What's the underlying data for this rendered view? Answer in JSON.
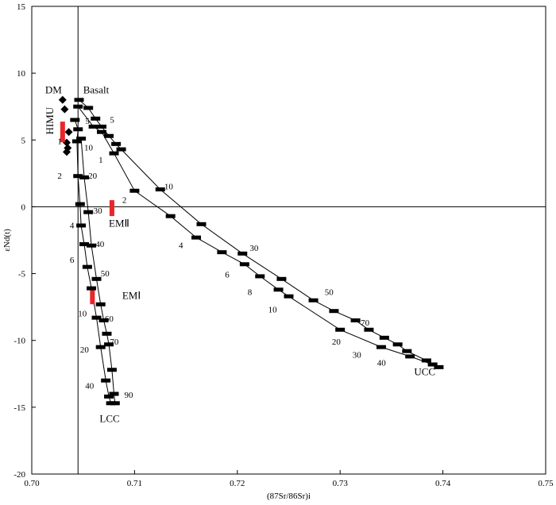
{
  "chart_data": {
    "type": "scatter",
    "title": "",
    "xlabel": "(87Sr/86Sr)i",
    "ylabel": "εNd(t)",
    "xlim": [
      0.7,
      0.75
    ],
    "ylim": [
      -20,
      15
    ],
    "xticks": [
      "0.70",
      "0.71",
      "0.72",
      "0.73",
      "0.74",
      "0.75"
    ],
    "yticks": [
      "15",
      "10",
      "5",
      "0",
      "-5",
      "-10",
      "-15",
      "-20"
    ],
    "reference_lines": {
      "vertical_x": 0.7045,
      "horizontal_y": 0
    },
    "grid": false,
    "series": [
      {
        "name": "Basalt",
        "marker": "diamond",
        "points": [
          [
            0.703,
            8.0
          ],
          [
            0.7032,
            7.3
          ],
          [
            0.7036,
            5.6
          ],
          [
            0.7034,
            4.8
          ],
          [
            0.7035,
            4.4
          ],
          [
            0.7034,
            4.1
          ]
        ]
      },
      {
        "marker": "red-bar",
        "points": [
          [
            0.703,
            5.6
          ],
          [
            0.7078,
            -0.1
          ],
          [
            0.7059,
            -6.7
          ]
        ]
      },
      {
        "marker": "black-dash",
        "curve": "Basalt-UCC upper",
        "points": [
          [
            0.7046,
            8.0
          ],
          [
            0.7055,
            7.4
          ],
          [
            0.7062,
            6.6
          ],
          [
            0.7068,
            6.0
          ],
          [
            0.7075,
            5.3
          ],
          [
            0.7082,
            4.7
          ],
          [
            0.7087,
            4.3
          ],
          [
            0.7125,
            1.3
          ],
          [
            0.7165,
            -1.3
          ],
          [
            0.7205,
            -3.5
          ],
          [
            0.7243,
            -5.4
          ],
          [
            0.7274,
            -7.0
          ],
          [
            0.7294,
            -7.8
          ],
          [
            0.7315,
            -8.5
          ],
          [
            0.7328,
            -9.2
          ],
          [
            0.7343,
            -9.8
          ],
          [
            0.7356,
            -10.3
          ],
          [
            0.7365,
            -10.8
          ],
          [
            0.7384,
            -11.5
          ],
          [
            0.7396,
            -12.0
          ]
        ]
      },
      {
        "marker": "black-dash",
        "curve": "DM-UCC lower",
        "points": [
          [
            0.7045,
            7.5
          ],
          [
            0.706,
            6.0
          ],
          [
            0.7068,
            5.6
          ],
          [
            0.708,
            4.0
          ],
          [
            0.71,
            1.2
          ],
          [
            0.7135,
            -0.7
          ],
          [
            0.716,
            -2.3
          ],
          [
            0.7185,
            -3.4
          ],
          [
            0.7207,
            -4.3
          ],
          [
            0.7222,
            -5.2
          ],
          [
            0.724,
            -6.2
          ],
          [
            0.725,
            -6.7
          ],
          [
            0.73,
            -9.2
          ],
          [
            0.734,
            -10.5
          ],
          [
            0.7368,
            -11.2
          ],
          [
            0.739,
            -11.8
          ]
        ]
      },
      {
        "marker": "black-dash",
        "curve": "Basalt-LCC left",
        "points": [
          [
            0.7042,
            6.5
          ],
          [
            0.7045,
            5.8
          ],
          [
            0.7044,
            4.9
          ],
          [
            0.7045,
            2.3
          ],
          [
            0.7047,
            0.2
          ],
          [
            0.7048,
            -1.4
          ],
          [
            0.7051,
            -2.8
          ],
          [
            0.7054,
            -4.5
          ],
          [
            0.7058,
            -6.1
          ],
          [
            0.7063,
            -8.3
          ],
          [
            0.7067,
            -10.5
          ],
          [
            0.7072,
            -13.0
          ],
          [
            0.7075,
            -14.2
          ],
          [
            0.7077,
            -14.7
          ]
        ]
      },
      {
        "marker": "black-dash",
        "curve": "Basalt-LCC right",
        "points": [
          [
            0.7048,
            5.1
          ],
          [
            0.7051,
            2.2
          ],
          [
            0.7055,
            -0.4
          ],
          [
            0.7058,
            -2.9
          ],
          [
            0.7063,
            -5.4
          ],
          [
            0.7067,
            -7.3
          ],
          [
            0.707,
            -8.5
          ],
          [
            0.7073,
            -9.5
          ],
          [
            0.7075,
            -10.3
          ],
          [
            0.7078,
            -12.2
          ],
          [
            0.708,
            -14.0
          ],
          [
            0.7081,
            -14.7
          ]
        ]
      }
    ],
    "annotations": [
      {
        "text": "DM",
        "x": 0.7013,
        "y": 8.5,
        "size": "big"
      },
      {
        "text": "Basalt",
        "x": 0.705,
        "y": 8.5,
        "size": "big"
      },
      {
        "text": "HIMU",
        "x": 0.7021,
        "y": 5.4,
        "size": "big",
        "rotate": true
      },
      {
        "text": "EMⅡ",
        "x": 0.7075,
        "y": -1.5,
        "size": "big"
      },
      {
        "text": "EMⅠ",
        "x": 0.7088,
        "y": -6.9,
        "size": "big"
      },
      {
        "text": "LCC",
        "x": 0.7066,
        "y": -16.1,
        "size": "big"
      },
      {
        "text": "UCC",
        "x": 0.7372,
        "y": -12.6,
        "size": "big"
      },
      {
        "text": "5",
        "x": 0.7076,
        "y": 6.3
      },
      {
        "text": "5",
        "x": 0.7052,
        "y": 6.2
      },
      {
        "text": "1",
        "x": 0.7025,
        "y": 4.7
      },
      {
        "text": "10",
        "x": 0.7051,
        "y": 4.2
      },
      {
        "text": "1",
        "x": 0.7065,
        "y": 3.3
      },
      {
        "text": "2",
        "x": 0.7025,
        "y": 2.1
      },
      {
        "text": "20",
        "x": 0.7055,
        "y": 2.1
      },
      {
        "text": "10",
        "x": 0.7129,
        "y": 1.3
      },
      {
        "text": "2",
        "x": 0.7088,
        "y": 0.3
      },
      {
        "text": "30",
        "x": 0.706,
        "y": -0.5
      },
      {
        "text": "4",
        "x": 0.7037,
        "y": -1.6
      },
      {
        "text": "40",
        "x": 0.7062,
        "y": -3.0
      },
      {
        "text": "4",
        "x": 0.7143,
        "y": -3.1
      },
      {
        "text": "30",
        "x": 0.7212,
        "y": -3.3
      },
      {
        "text": "6",
        "x": 0.7037,
        "y": -4.2
      },
      {
        "text": "50",
        "x": 0.7067,
        "y": -5.2
      },
      {
        "text": "6",
        "x": 0.7188,
        "y": -5.3
      },
      {
        "text": "50",
        "x": 0.7285,
        "y": -6.6
      },
      {
        "text": "8",
        "x": 0.721,
        "y": -6.6
      },
      {
        "text": "10",
        "x": 0.7045,
        "y": -8.2
      },
      {
        "text": "60",
        "x": 0.7071,
        "y": -8.6
      },
      {
        "text": "10",
        "x": 0.723,
        "y": -7.9
      },
      {
        "text": "70",
        "x": 0.732,
        "y": -8.9
      },
      {
        "text": "70",
        "x": 0.7076,
        "y": -10.3
      },
      {
        "text": "20",
        "x": 0.7047,
        "y": -10.9
      },
      {
        "text": "20",
        "x": 0.7292,
        "y": -10.3
      },
      {
        "text": "30",
        "x": 0.7312,
        "y": -11.3
      },
      {
        "text": "40",
        "x": 0.7336,
        "y": -11.9
      },
      {
        "text": "40",
        "x": 0.7052,
        "y": -13.6
      },
      {
        "text": "90",
        "x": 0.709,
        "y": -14.3
      }
    ]
  }
}
